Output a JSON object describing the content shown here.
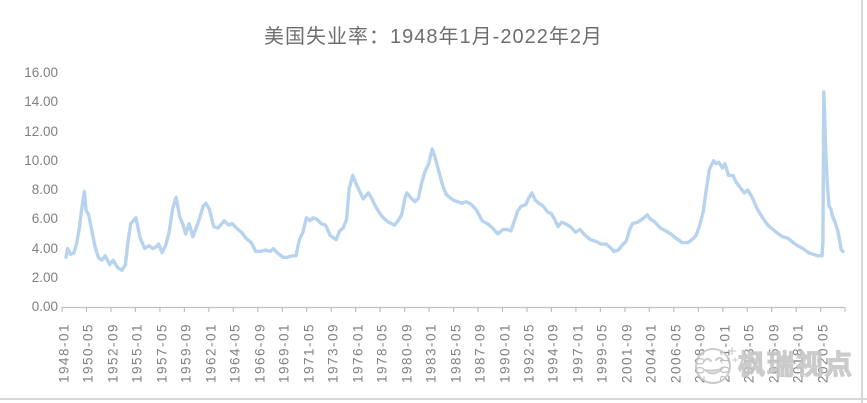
{
  "page": {
    "background": "#FFFFFF"
  },
  "colors": {
    "line": "#B7D3EE",
    "title_text": "#6E6E6E",
    "tick_text": "#808080",
    "axis_line": "#C0C0C0",
    "watermark": "#C6C6C6",
    "frame_border": "#D7D7D7"
  },
  "watermark": {
    "icon": "smiley-watermark-icon",
    "text": "枫瑞视点"
  },
  "chart_data": {
    "type": "line",
    "title": "美国失业率：1948年1月-2022年2月",
    "xlabel": "",
    "ylabel": "",
    "ylim": [
      0,
      16
    ],
    "grid": false,
    "legend": "none",
    "y_tick_labels": [
      "16.00",
      "14.00",
      "12.00",
      "10.00",
      "8.00",
      "6.00",
      "4.00",
      "2.00",
      "0.00"
    ],
    "x_tick_labels": [
      "1948-01",
      "1950-05",
      "1952-09",
      "1955-01",
      "1957-05",
      "1959-09",
      "1962-01",
      "1964-05",
      "1966-09",
      "1969-01",
      "1971-05",
      "1973-09",
      "1976-01",
      "1978-05",
      "1980-09",
      "1983-01",
      "1985-05",
      "1987-09",
      "1990-01",
      "1992-05",
      "1994-09",
      "1997-01",
      "1999-05",
      "2001-09",
      "2004-01",
      "2006-05",
      "2008-09",
      "2011-01",
      "2013-05",
      "2015-09",
      "2018-01",
      "2020-05"
    ],
    "x_tick_interval_months": 28,
    "x_range": [
      "1948-01",
      "2022-02"
    ],
    "series": [
      {
        "name": "美国失业率",
        "points": [
          [
            "1948-01",
            3.4
          ],
          [
            "1948-03",
            4.0
          ],
          [
            "1948-06",
            3.6
          ],
          [
            "1948-10",
            3.7
          ],
          [
            "1949-01",
            4.3
          ],
          [
            "1949-04",
            5.3
          ],
          [
            "1949-07",
            6.7
          ],
          [
            "1949-10",
            7.9
          ],
          [
            "1949-12",
            6.6
          ],
          [
            "1950-03",
            6.3
          ],
          [
            "1950-06",
            5.4
          ],
          [
            "1950-10",
            4.2
          ],
          [
            "1951-02",
            3.4
          ],
          [
            "1951-06",
            3.2
          ],
          [
            "1951-10",
            3.5
          ],
          [
            "1952-03",
            2.9
          ],
          [
            "1952-07",
            3.2
          ],
          [
            "1952-12",
            2.7
          ],
          [
            "1953-05",
            2.5
          ],
          [
            "1953-09",
            2.9
          ],
          [
            "1953-12",
            4.5
          ],
          [
            "1954-03",
            5.7
          ],
          [
            "1954-09",
            6.1
          ],
          [
            "1955-02",
            4.7
          ],
          [
            "1955-07",
            4.0
          ],
          [
            "1955-12",
            4.2
          ],
          [
            "1956-04",
            4.0
          ],
          [
            "1956-08",
            4.1
          ],
          [
            "1956-11",
            4.3
          ],
          [
            "1957-03",
            3.7
          ],
          [
            "1957-07",
            4.2
          ],
          [
            "1957-11",
            5.1
          ],
          [
            "1958-03",
            6.7
          ],
          [
            "1958-07",
            7.5
          ],
          [
            "1958-11",
            6.2
          ],
          [
            "1959-03",
            5.6
          ],
          [
            "1959-06",
            5.0
          ],
          [
            "1959-10",
            5.7
          ],
          [
            "1960-02",
            4.8
          ],
          [
            "1960-06",
            5.4
          ],
          [
            "1960-10",
            6.1
          ],
          [
            "1961-02",
            6.9
          ],
          [
            "1961-05",
            7.1
          ],
          [
            "1961-09",
            6.7
          ],
          [
            "1962-02",
            5.5
          ],
          [
            "1962-07",
            5.4
          ],
          [
            "1963-02",
            5.9
          ],
          [
            "1963-07",
            5.6
          ],
          [
            "1963-11",
            5.7
          ],
          [
            "1964-04",
            5.4
          ],
          [
            "1964-10",
            5.1
          ],
          [
            "1965-03",
            4.7
          ],
          [
            "1965-09",
            4.4
          ],
          [
            "1966-02",
            3.8
          ],
          [
            "1966-08",
            3.8
          ],
          [
            "1967-01",
            3.9
          ],
          [
            "1967-07",
            3.8
          ],
          [
            "1967-10",
            4.0
          ],
          [
            "1968-03",
            3.7
          ],
          [
            "1968-09",
            3.4
          ],
          [
            "1969-02",
            3.4
          ],
          [
            "1969-08",
            3.5
          ],
          [
            "1969-12",
            3.5
          ],
          [
            "1970-04",
            4.6
          ],
          [
            "1970-08",
            5.1
          ],
          [
            "1970-12",
            6.1
          ],
          [
            "1971-04",
            5.9
          ],
          [
            "1971-08",
            6.1
          ],
          [
            "1971-12",
            6.0
          ],
          [
            "1972-05",
            5.7
          ],
          [
            "1972-10",
            5.6
          ],
          [
            "1973-03",
            4.9
          ],
          [
            "1973-10",
            4.6
          ],
          [
            "1974-02",
            5.2
          ],
          [
            "1974-06",
            5.4
          ],
          [
            "1974-10",
            6.0
          ],
          [
            "1975-01",
            8.1
          ],
          [
            "1975-05",
            9.0
          ],
          [
            "1975-09",
            8.4
          ],
          [
            "1976-01",
            7.9
          ],
          [
            "1976-05",
            7.4
          ],
          [
            "1976-11",
            7.8
          ],
          [
            "1977-03",
            7.4
          ],
          [
            "1977-07",
            6.9
          ],
          [
            "1977-12",
            6.4
          ],
          [
            "1978-04",
            6.1
          ],
          [
            "1978-10",
            5.8
          ],
          [
            "1979-05",
            5.6
          ],
          [
            "1979-10",
            6.0
          ],
          [
            "1980-01",
            6.3
          ],
          [
            "1980-05",
            7.5
          ],
          [
            "1980-07",
            7.8
          ],
          [
            "1980-11",
            7.5
          ],
          [
            "1981-04",
            7.2
          ],
          [
            "1981-08",
            7.4
          ],
          [
            "1981-12",
            8.5
          ],
          [
            "1982-04",
            9.3
          ],
          [
            "1982-08",
            9.8
          ],
          [
            "1982-12",
            10.8
          ],
          [
            "1983-03",
            10.3
          ],
          [
            "1983-07",
            9.4
          ],
          [
            "1983-12",
            8.3
          ],
          [
            "1984-04",
            7.7
          ],
          [
            "1984-08",
            7.5
          ],
          [
            "1984-12",
            7.3
          ],
          [
            "1985-05",
            7.2
          ],
          [
            "1985-10",
            7.1
          ],
          [
            "1986-03",
            7.2
          ],
          [
            "1986-09",
            7.0
          ],
          [
            "1987-03",
            6.6
          ],
          [
            "1987-09",
            5.9
          ],
          [
            "1988-03",
            5.7
          ],
          [
            "1988-09",
            5.4
          ],
          [
            "1989-03",
            5.0
          ],
          [
            "1989-09",
            5.3
          ],
          [
            "1990-02",
            5.3
          ],
          [
            "1990-06",
            5.2
          ],
          [
            "1990-10",
            5.9
          ],
          [
            "1991-02",
            6.6
          ],
          [
            "1991-06",
            6.9
          ],
          [
            "1991-11",
            7.0
          ],
          [
            "1992-02",
            7.4
          ],
          [
            "1992-06",
            7.8
          ],
          [
            "1992-10",
            7.3
          ],
          [
            "1993-02",
            7.1
          ],
          [
            "1993-07",
            6.9
          ],
          [
            "1993-12",
            6.5
          ],
          [
            "1994-04",
            6.4
          ],
          [
            "1994-08",
            6.0
          ],
          [
            "1994-12",
            5.5
          ],
          [
            "1995-04",
            5.8
          ],
          [
            "1995-08",
            5.7
          ],
          [
            "1996-02",
            5.5
          ],
          [
            "1996-08",
            5.1
          ],
          [
            "1997-01",
            5.3
          ],
          [
            "1997-07",
            4.9
          ],
          [
            "1998-01",
            4.6
          ],
          [
            "1998-07",
            4.5
          ],
          [
            "1999-01",
            4.3
          ],
          [
            "1999-07",
            4.3
          ],
          [
            "2000-01",
            4.0
          ],
          [
            "2000-04",
            3.8
          ],
          [
            "2000-09",
            3.9
          ],
          [
            "2001-01",
            4.2
          ],
          [
            "2001-06",
            4.5
          ],
          [
            "2001-10",
            5.3
          ],
          [
            "2002-01",
            5.7
          ],
          [
            "2002-07",
            5.8
          ],
          [
            "2002-12",
            6.0
          ],
          [
            "2003-06",
            6.3
          ],
          [
            "2003-10",
            6.0
          ],
          [
            "2004-03",
            5.8
          ],
          [
            "2004-09",
            5.4
          ],
          [
            "2005-03",
            5.2
          ],
          [
            "2005-09",
            5.0
          ],
          [
            "2006-03",
            4.7
          ],
          [
            "2006-10",
            4.4
          ],
          [
            "2007-05",
            4.4
          ],
          [
            "2007-11",
            4.7
          ],
          [
            "2008-02",
            4.9
          ],
          [
            "2008-06",
            5.6
          ],
          [
            "2008-10",
            6.5
          ],
          [
            "2009-01",
            7.8
          ],
          [
            "2009-05",
            9.4
          ],
          [
            "2009-10",
            10.0
          ],
          [
            "2010-01",
            9.8
          ],
          [
            "2010-04",
            9.9
          ],
          [
            "2010-08",
            9.5
          ],
          [
            "2010-11",
            9.8
          ],
          [
            "2011-03",
            9.0
          ],
          [
            "2011-08",
            9.0
          ],
          [
            "2011-12",
            8.5
          ],
          [
            "2012-04",
            8.2
          ],
          [
            "2012-09",
            7.8
          ],
          [
            "2013-01",
            8.0
          ],
          [
            "2013-06",
            7.5
          ],
          [
            "2013-12",
            6.7
          ],
          [
            "2014-06",
            6.1
          ],
          [
            "2014-12",
            5.6
          ],
          [
            "2015-06",
            5.3
          ],
          [
            "2015-12",
            5.0
          ],
          [
            "2016-05",
            4.8
          ],
          [
            "2016-11",
            4.7
          ],
          [
            "2017-05",
            4.4
          ],
          [
            "2017-10",
            4.2
          ],
          [
            "2018-04",
            4.0
          ],
          [
            "2018-11",
            3.7
          ],
          [
            "2019-04",
            3.6
          ],
          [
            "2019-09",
            3.5
          ],
          [
            "2020-02",
            3.5
          ],
          [
            "2020-03",
            4.4
          ],
          [
            "2020-04",
            14.7
          ],
          [
            "2020-05",
            13.3
          ],
          [
            "2020-06",
            11.1
          ],
          [
            "2020-08",
            8.4
          ],
          [
            "2020-10",
            6.9
          ],
          [
            "2020-12",
            6.7
          ],
          [
            "2021-02",
            6.2
          ],
          [
            "2021-05",
            5.8
          ],
          [
            "2021-08",
            5.2
          ],
          [
            "2021-10",
            4.6
          ],
          [
            "2021-12",
            3.9
          ],
          [
            "2022-02",
            3.8
          ]
        ]
      }
    ]
  }
}
